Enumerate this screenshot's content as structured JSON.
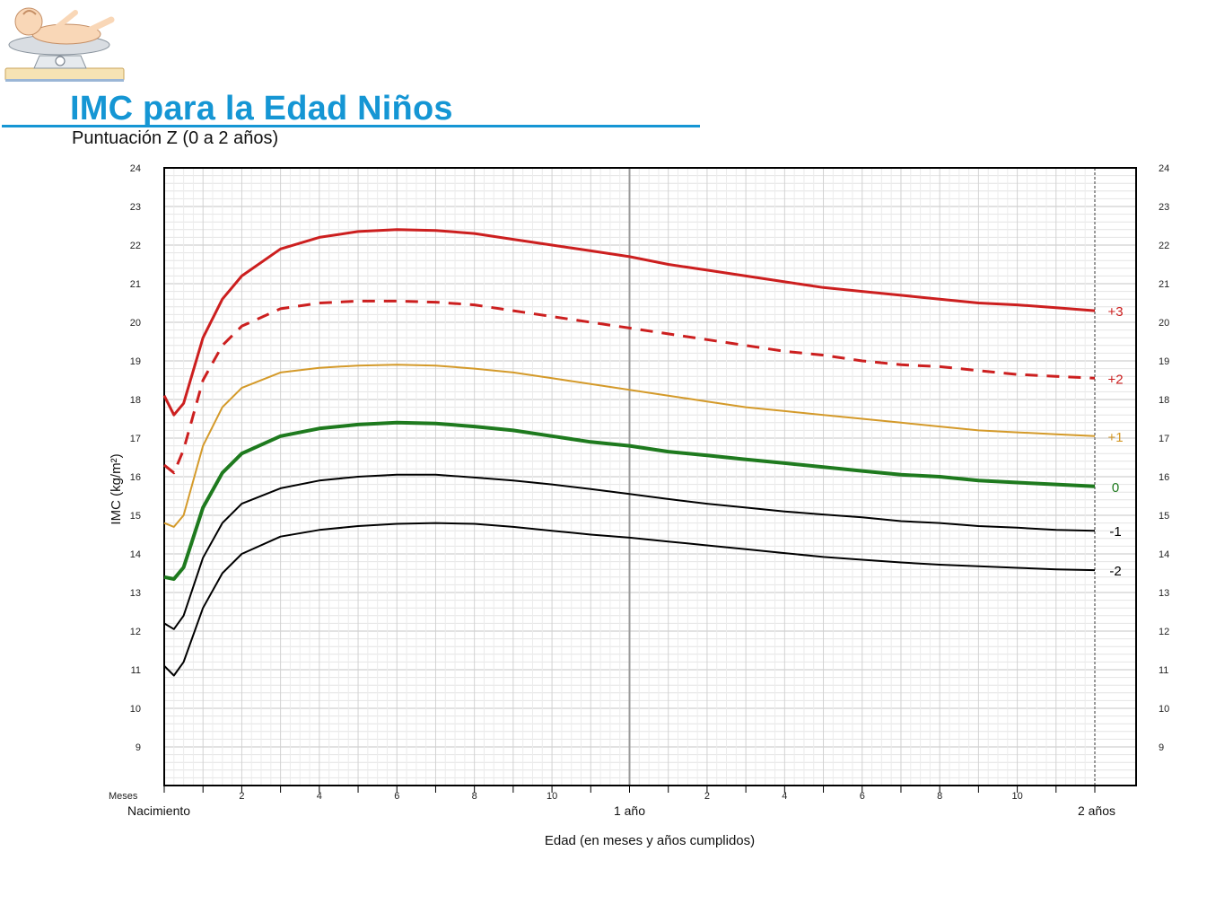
{
  "header": {
    "title": "IMC para la Edad Niños",
    "subtitle": "Puntuación Z (0 a 2 años)"
  },
  "colors": {
    "title": "#1596d4",
    "z3": "#cc1f1f",
    "z2": "#cc1f1f",
    "z1": "#d49a2a",
    "z0": "#1e7a1e",
    "zneg": "#000000"
  },
  "chart_data": {
    "type": "line",
    "ylabel": "IMC (kg/m²)",
    "xlabel": "Edad (en meses y años cumplidos)",
    "ylim": [
      8,
      24
    ],
    "xlim": [
      0,
      24
    ],
    "y_ticks": [
      9,
      10,
      11,
      12,
      13,
      14,
      15,
      16,
      17,
      18,
      19,
      20,
      21,
      22,
      23,
      24
    ],
    "x_major_labels": [
      {
        "x": 0,
        "label": "Nacimiento"
      },
      {
        "x": 12,
        "label": "1 año"
      },
      {
        "x": 24,
        "label": "2 años"
      }
    ],
    "x_minor_labels": [
      {
        "x": 0,
        "label": "Meses"
      },
      {
        "x": 2,
        "label": "2"
      },
      {
        "x": 4,
        "label": "4"
      },
      {
        "x": 6,
        "label": "6"
      },
      {
        "x": 8,
        "label": "8"
      },
      {
        "x": 10,
        "label": "10"
      },
      {
        "x": 14,
        "label": "2"
      },
      {
        "x": 16,
        "label": "4"
      },
      {
        "x": 18,
        "label": "6"
      },
      {
        "x": 20,
        "label": "8"
      },
      {
        "x": 22,
        "label": "10"
      }
    ],
    "grid": true,
    "x": [
      0,
      0.25,
      0.5,
      1,
      1.5,
      2,
      3,
      4,
      5,
      6,
      7,
      8,
      9,
      10,
      11,
      12,
      13,
      14,
      15,
      16,
      17,
      18,
      19,
      20,
      21,
      22,
      23,
      24
    ],
    "series": [
      {
        "name": "+3",
        "style": "solid",
        "color_key": "z3",
        "values": [
          18.1,
          17.6,
          17.9,
          19.6,
          20.6,
          21.2,
          21.9,
          22.2,
          22.35,
          22.4,
          22.38,
          22.3,
          22.15,
          22.0,
          21.85,
          21.7,
          21.5,
          21.35,
          21.2,
          21.05,
          20.9,
          20.8,
          20.7,
          20.6,
          20.5,
          20.45,
          20.38,
          20.3
        ]
      },
      {
        "name": "+2",
        "style": "dashed",
        "color_key": "z2",
        "values": [
          16.3,
          16.1,
          16.7,
          18.5,
          19.4,
          19.9,
          20.35,
          20.5,
          20.55,
          20.55,
          20.52,
          20.45,
          20.3,
          20.15,
          20.0,
          19.85,
          19.7,
          19.55,
          19.4,
          19.25,
          19.15,
          19.0,
          18.9,
          18.85,
          18.75,
          18.65,
          18.6,
          18.55
        ]
      },
      {
        "name": "+1",
        "style": "solid",
        "color_key": "z1",
        "values": [
          14.8,
          14.7,
          15.0,
          16.8,
          17.8,
          18.3,
          18.7,
          18.82,
          18.88,
          18.9,
          18.88,
          18.8,
          18.7,
          18.55,
          18.4,
          18.25,
          18.1,
          17.95,
          17.8,
          17.7,
          17.6,
          17.5,
          17.4,
          17.3,
          17.2,
          17.15,
          17.1,
          17.05
        ]
      },
      {
        "name": "0",
        "style": "solid",
        "color_key": "z0",
        "values": [
          13.4,
          13.35,
          13.65,
          15.2,
          16.1,
          16.6,
          17.05,
          17.25,
          17.35,
          17.4,
          17.38,
          17.3,
          17.2,
          17.05,
          16.9,
          16.8,
          16.65,
          16.55,
          16.45,
          16.35,
          16.25,
          16.15,
          16.05,
          16.0,
          15.9,
          15.85,
          15.8,
          15.75
        ]
      },
      {
        "name": "-1",
        "style": "solid",
        "color_key": "zneg",
        "values": [
          12.2,
          12.05,
          12.4,
          13.9,
          14.8,
          15.3,
          15.7,
          15.9,
          16.0,
          16.05,
          16.05,
          15.98,
          15.9,
          15.8,
          15.68,
          15.55,
          15.42,
          15.3,
          15.2,
          15.1,
          15.02,
          14.95,
          14.85,
          14.8,
          14.72,
          14.68,
          14.62,
          14.6
        ]
      },
      {
        "name": "-2",
        "style": "solid",
        "color_key": "zneg",
        "values": [
          11.1,
          10.85,
          11.2,
          12.6,
          13.5,
          14.0,
          14.45,
          14.62,
          14.72,
          14.78,
          14.8,
          14.78,
          14.7,
          14.6,
          14.5,
          14.42,
          14.32,
          14.22,
          14.12,
          14.02,
          13.92,
          13.85,
          13.78,
          13.72,
          13.68,
          13.64,
          13.6,
          13.58
        ]
      }
    ]
  }
}
